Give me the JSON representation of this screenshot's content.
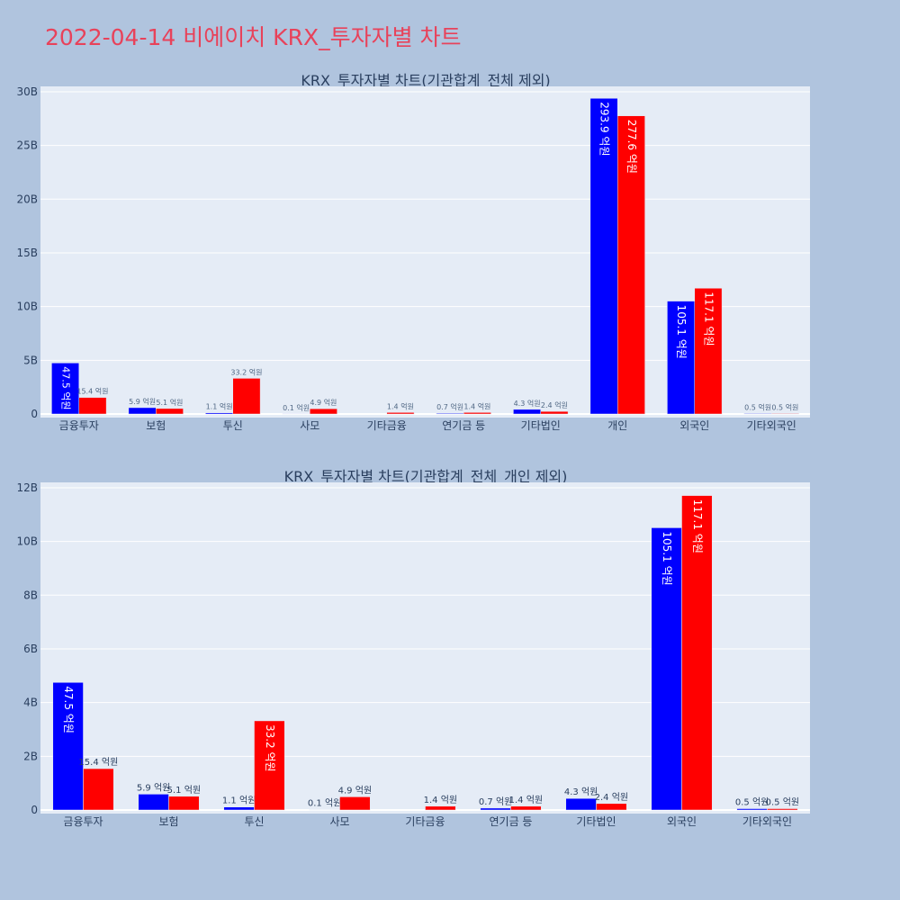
{
  "page": {
    "title": "2022-04-14 비에이치 KRX_투자자별 차트",
    "background": "#b0c4de",
    "title_color": "#e8425a"
  },
  "chart_data": [
    {
      "type": "bar",
      "title": "KRX_투자자별 차트(기관합계_전체 제외)",
      "categories": [
        "금융투자",
        "보험",
        "투신",
        "사모",
        "기타금융",
        "연기금 등",
        "기타법인",
        "개인",
        "외국인",
        "기타외국인"
      ],
      "ylim": [
        0,
        30500000000
      ],
      "yticks": [
        0,
        5000000000,
        10000000000,
        15000000000,
        20000000000,
        25000000000,
        30000000000
      ],
      "yticklabels": [
        "0",
        "5B",
        "10B",
        "15B",
        "20B",
        "25B",
        "30B"
      ],
      "grid": true,
      "series": [
        {
          "color": "#0000ff",
          "values": [
            4750000000,
            590000000,
            110000000,
            10000000,
            0,
            70000000,
            430000000,
            29390000000,
            10510000000,
            50000000
          ],
          "labels": [
            "47.5 억원",
            "5.9 억원",
            "1.1 억원",
            "0.1 억원",
            "",
            "0.7 억원",
            "4.3 억원",
            "293.9 억원",
            "105.1 억원",
            "0.5 억원"
          ]
        },
        {
          "color": "#ff0000",
          "values": [
            1540000000,
            510000000,
            3320000000,
            490000000,
            140000000,
            140000000,
            240000000,
            27760000000,
            11710000000,
            50000000
          ],
          "labels": [
            "15.4 억원",
            "5.1 억원",
            "33.2 억원",
            "4.9 억원",
            "1.4 억원",
            "1.4 억원",
            "2.4 억원",
            "277.6 억원",
            "117.1 억원",
            "0.5 억원"
          ]
        }
      ]
    },
    {
      "type": "bar",
      "title": "KRX_투자자별 차트(기관합계_전체_개인 제외)",
      "categories": [
        "금융투자",
        "보험",
        "투신",
        "사모",
        "기타금융",
        "연기금 등",
        "기타법인",
        "외국인",
        "기타외국인"
      ],
      "ylim": [
        0,
        12200000000
      ],
      "yticks": [
        0,
        2000000000,
        4000000000,
        6000000000,
        8000000000,
        10000000000,
        12000000000
      ],
      "yticklabels": [
        "0",
        "2B",
        "4B",
        "6B",
        "8B",
        "10B",
        "12B"
      ],
      "grid": true,
      "series": [
        {
          "color": "#0000ff",
          "values": [
            4750000000,
            590000000,
            110000000,
            10000000,
            0,
            70000000,
            430000000,
            10510000000,
            50000000
          ],
          "labels": [
            "47.5 억원",
            "5.9 억원",
            "1.1 억원",
            "0.1 억원",
            "",
            "0.7 억원",
            "4.3 억원",
            "105.1 억원",
            "0.5 억원"
          ]
        },
        {
          "color": "#ff0000",
          "values": [
            1540000000,
            510000000,
            3320000000,
            490000000,
            140000000,
            140000000,
            240000000,
            11710000000,
            50000000
          ],
          "labels": [
            "15.4 억원",
            "5.1 억원",
            "33.2 억원",
            "4.9 억원",
            "1.4 억원",
            "1.4 억원",
            "2.4 억원",
            "117.1 억원",
            "0.5 억원"
          ]
        }
      ]
    }
  ]
}
